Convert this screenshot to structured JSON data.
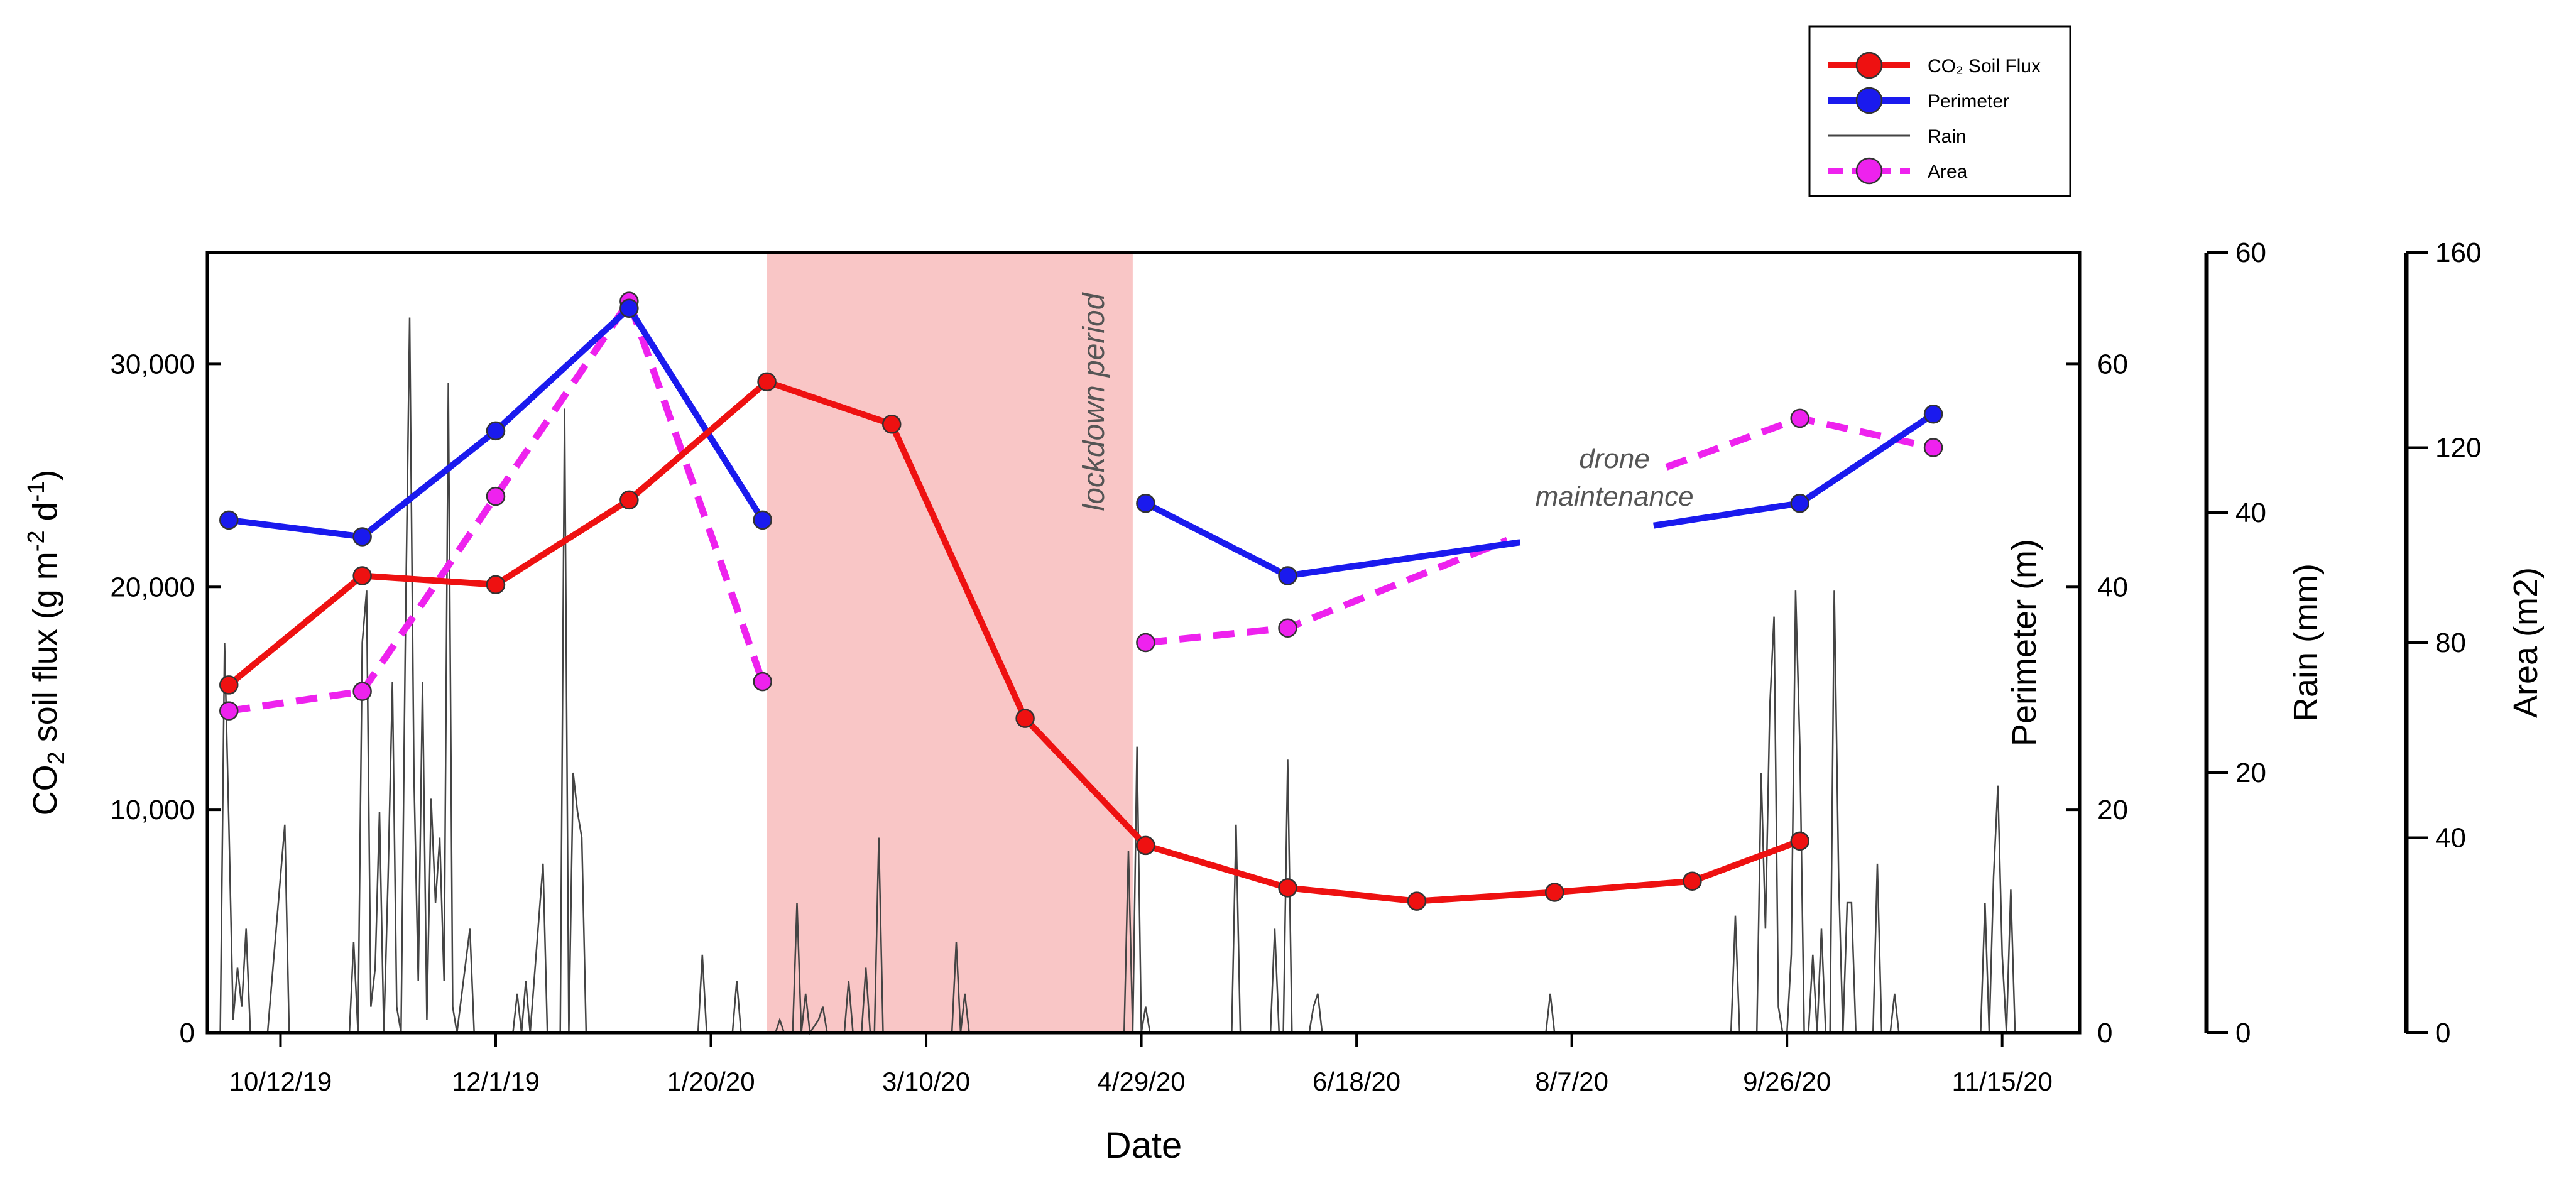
{
  "chart_data": {
    "type": "line",
    "title": "",
    "xlabel": "Date",
    "x_ticks": [
      {
        "label": "10/12/19",
        "day": 0
      },
      {
        "label": "12/1/19",
        "day": 50
      },
      {
        "label": "1/20/20",
        "day": 100
      },
      {
        "label": "3/10/20",
        "day": 150
      },
      {
        "label": "4/29/20",
        "day": 200
      },
      {
        "label": "6/18/20",
        "day": 250
      },
      {
        "label": "8/7/20",
        "day": 300
      },
      {
        "label": "9/26/20",
        "day": 350
      },
      {
        "label": "11/15/20",
        "day": 400
      }
    ],
    "x_range_days": [
      -17,
      418
    ],
    "axes": {
      "flux": {
        "label_main": "CO",
        "label_sub": "2",
        "label_rest": " soil flux (g m",
        "label_sup1": "-2",
        "label_mid": " d",
        "label_sup2": "-1",
        "label_end": ")",
        "range": [
          0,
          35000
        ],
        "ticks": [
          0,
          10000,
          20000,
          30000
        ],
        "tick_labels": [
          "0",
          "10,000",
          "20,000",
          "30,000"
        ]
      },
      "perimeter": {
        "label": "Perimeter (m)",
        "range": [
          0,
          70
        ],
        "ticks": [
          0,
          20,
          40,
          60
        ],
        "tick_labels": [
          "0",
          "20",
          "40",
          "60"
        ]
      },
      "rain": {
        "label": "Rain (mm)",
        "range": [
          0,
          60
        ],
        "ticks": [
          0,
          20,
          40,
          60
        ],
        "tick_labels": [
          "0",
          "20",
          "40",
          "60"
        ]
      },
      "area": {
        "label": "Area (m2)",
        "range": [
          0,
          160
        ],
        "ticks": [
          0,
          40,
          80,
          120,
          160
        ],
        "tick_labels": [
          "0",
          "40",
          "80",
          "120",
          "160"
        ]
      }
    },
    "shaded_region": {
      "label": "lockdown period",
      "day_start": 113,
      "day_end": 198,
      "color": "#f9c6c6"
    },
    "annotations": [
      {
        "text_line1": "drone",
        "text_line2": "maintenance",
        "day": 307,
        "perimeter": 47
      }
    ],
    "legend": {
      "position": "top-right",
      "entries": [
        {
          "label": "CO₂ Soil Flux",
          "color": "#ee1111",
          "style": "line-marker"
        },
        {
          "label": "Perimeter",
          "color": "#1a1aee",
          "style": "line-marker"
        },
        {
          "label": "Rain",
          "color": "#444444",
          "style": "thin-line"
        },
        {
          "label": "Area",
          "color": "#ee22ee",
          "style": "dashed-marker"
        }
      ]
    },
    "series": [
      {
        "name": "CO₂ Soil Flux",
        "axis": "flux",
        "color": "#ee1111",
        "days": [
          -12,
          19,
          50,
          81,
          113,
          142,
          173,
          201,
          234,
          264,
          296,
          328,
          353
        ],
        "values": [
          15600,
          20500,
          20100,
          23900,
          29200,
          27300,
          14100,
          8400,
          6500,
          5900,
          6300,
          6800,
          8600
        ]
      },
      {
        "name": "Perimeter",
        "axis": "perimeter",
        "color": "#1a1aee",
        "segments": [
          {
            "days": [
              -12,
              19,
              50,
              81,
              112
            ],
            "values": [
              46,
              44.5,
              54,
              65,
              46
            ]
          },
          {
            "days": [
              201,
              234,
              288
            ],
            "values": [
              47.5,
              41,
              44
            ]
          },
          {
            "days": [
              319,
              353,
              384
            ],
            "values": [
              45.5,
              47.5,
              55.5
            ]
          }
        ],
        "markers_days": [
          -12,
          19,
          50,
          81,
          112,
          201,
          234,
          353,
          384
        ],
        "markers_values": [
          46,
          44.5,
          54,
          65,
          46,
          47.5,
          41,
          47.5,
          55.5
        ]
      },
      {
        "name": "Area",
        "axis": "area",
        "color": "#ee22ee",
        "segments": [
          {
            "days": [
              -12,
              19,
              50,
              81,
              112
            ],
            "values": [
              66,
              70,
              110,
              150,
              72
            ]
          },
          {
            "days": [
              201,
              234,
              285
            ],
            "values": [
              80,
              83,
              101
            ]
          },
          {
            "days": [
              322,
              353,
              384
            ],
            "values": [
              116,
              126,
              120
            ]
          }
        ],
        "markers_days": [
          -12,
          19,
          50,
          81,
          112,
          201,
          234,
          353,
          384
        ],
        "markers_values": [
          66,
          70,
          110,
          150,
          72,
          80,
          83,
          126,
          120
        ]
      },
      {
        "name": "Rain",
        "axis": "rain",
        "color": "#444444",
        "points": [
          [
            -14,
            0
          ],
          [
            -13,
            30
          ],
          [
            -12,
            16
          ],
          [
            -11,
            1
          ],
          [
            -10,
            5
          ],
          [
            -9,
            2
          ],
          [
            -8,
            8
          ],
          [
            -7,
            0
          ],
          [
            -3,
            0
          ],
          [
            1,
            16
          ],
          [
            2,
            0
          ],
          [
            16,
            0
          ],
          [
            17,
            7
          ],
          [
            18,
            0
          ],
          [
            19,
            30
          ],
          [
            20,
            34
          ],
          [
            21,
            2
          ],
          [
            22,
            5
          ],
          [
            23,
            17
          ],
          [
            24,
            0
          ],
          [
            25,
            12
          ],
          [
            26,
            27
          ],
          [
            27,
            2
          ],
          [
            28,
            0
          ],
          [
            29,
            30
          ],
          [
            30,
            55
          ],
          [
            31,
            20
          ],
          [
            32,
            4
          ],
          [
            33,
            27
          ],
          [
            34,
            1
          ],
          [
            35,
            18
          ],
          [
            36,
            10
          ],
          [
            37,
            15
          ],
          [
            38,
            4
          ],
          [
            39,
            50
          ],
          [
            40,
            2
          ],
          [
            41,
            0
          ],
          [
            44,
            8
          ],
          [
            45,
            0
          ],
          [
            54,
            0
          ],
          [
            55,
            3
          ],
          [
            56,
            0
          ],
          [
            57,
            4
          ],
          [
            58,
            0
          ],
          [
            61,
            13
          ],
          [
            62,
            0
          ],
          [
            65,
            0
          ],
          [
            66,
            48
          ],
          [
            67,
            0
          ],
          [
            68,
            20
          ],
          [
            69,
            17
          ],
          [
            70,
            15
          ],
          [
            71,
            0
          ],
          [
            97,
            0
          ],
          [
            98,
            6
          ],
          [
            99,
            0
          ],
          [
            105,
            0
          ],
          [
            106,
            4
          ],
          [
            107,
            0
          ],
          [
            115,
            0
          ],
          [
            116,
            1
          ],
          [
            117,
            0
          ],
          [
            119,
            0
          ],
          [
            120,
            10
          ],
          [
            121,
            0
          ],
          [
            122,
            3
          ],
          [
            123,
            0
          ],
          [
            125,
            1
          ],
          [
            126,
            2
          ],
          [
            127,
            0
          ],
          [
            131,
            0
          ],
          [
            132,
            4
          ],
          [
            133,
            0
          ],
          [
            135,
            0
          ],
          [
            136,
            5
          ],
          [
            137,
            0
          ],
          [
            138,
            0
          ],
          [
            139,
            15
          ],
          [
            140,
            0
          ],
          [
            156,
            0
          ],
          [
            157,
            7
          ],
          [
            158,
            0
          ],
          [
            159,
            3
          ],
          [
            160,
            0
          ],
          [
            196,
            0
          ],
          [
            197,
            14
          ],
          [
            198,
            0
          ],
          [
            199,
            22
          ],
          [
            200,
            0
          ],
          [
            201,
            2
          ],
          [
            202,
            0
          ],
          [
            221,
            0
          ],
          [
            222,
            16
          ],
          [
            223,
            0
          ],
          [
            230,
            0
          ],
          [
            231,
            8
          ],
          [
            232,
            0
          ],
          [
            233,
            0
          ],
          [
            234,
            21
          ],
          [
            235,
            0
          ],
          [
            239,
            0
          ],
          [
            240,
            2
          ],
          [
            241,
            3
          ],
          [
            242,
            0
          ],
          [
            294,
            0
          ],
          [
            295,
            3
          ],
          [
            296,
            0
          ],
          [
            337,
            0
          ],
          [
            338,
            9
          ],
          [
            339,
            0
          ],
          [
            343,
            0
          ],
          [
            344,
            20
          ],
          [
            345,
            8
          ],
          [
            346,
            25
          ],
          [
            347,
            32
          ],
          [
            348,
            2
          ],
          [
            349,
            0
          ],
          [
            350,
            0
          ],
          [
            351,
            6
          ],
          [
            352,
            34
          ],
          [
            353,
            22
          ],
          [
            354,
            0
          ],
          [
            355,
            0
          ],
          [
            356,
            6
          ],
          [
            357,
            0
          ],
          [
            358,
            8
          ],
          [
            359,
            0
          ],
          [
            360,
            0
          ],
          [
            361,
            34
          ],
          [
            362,
            12
          ],
          [
            363,
            0
          ],
          [
            364,
            10
          ],
          [
            365,
            10
          ],
          [
            366,
            0
          ],
          [
            370,
            0
          ],
          [
            371,
            13
          ],
          [
            372,
            0
          ],
          [
            374,
            0
          ],
          [
            375,
            3
          ],
          [
            376,
            0
          ],
          [
            395,
            0
          ],
          [
            396,
            10
          ],
          [
            397,
            0
          ],
          [
            398,
            12
          ],
          [
            399,
            19
          ],
          [
            400,
            6
          ],
          [
            401,
            0
          ],
          [
            402,
            11
          ],
          [
            403,
            0
          ]
        ]
      }
    ]
  }
}
